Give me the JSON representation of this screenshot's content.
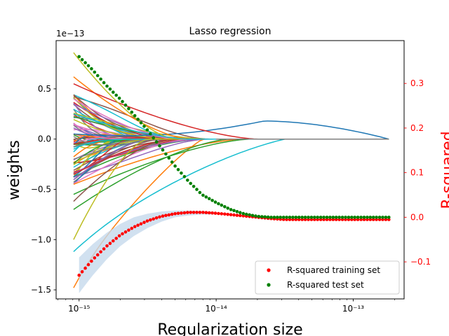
{
  "chart_data": {
    "type": "line",
    "title": "Lasso regression",
    "xlabel": "Regularization size",
    "ylabel_left": "weights",
    "ylabel_right": "R-squared",
    "x_scale": "log",
    "xlim": [
      6.8e-16,
      2.35e-13
    ],
    "ylim_left": [
      -1.59e-13,
      9.8e-14
    ],
    "ylim_right": [
      -0.183,
      0.396
    ],
    "left_axis_multiplier": "1e−13",
    "x_ticks": [
      {
        "value": 1e-15,
        "label": "10⁻¹⁵"
      },
      {
        "value": 1e-14,
        "label": "10⁻¹⁴"
      },
      {
        "value": 1e-13,
        "label": "10⁻¹³"
      }
    ],
    "y_ticks_left": [
      {
        "value": 0.5,
        "label": "0.5"
      },
      {
        "value": 0.0,
        "label": "0.0"
      },
      {
        "value": -0.5,
        "label": "−0.5"
      },
      {
        "value": -1.0,
        "label": "−1.0"
      },
      {
        "value": -1.5,
        "label": "−1.5"
      }
    ],
    "y_ticks_right": [
      {
        "value": 0.3,
        "label": "0.3"
      },
      {
        "value": 0.2,
        "label": "0.2"
      },
      {
        "value": 0.1,
        "label": "0.1"
      },
      {
        "value": 0.0,
        "label": "0.0"
      },
      {
        "value": -0.1,
        "label": "−0.1"
      }
    ],
    "x_range_log10": [
      -15.04,
      -12.74
    ],
    "weight_paths_approx": [
      {
        "color": "#1f77b4",
        "start": 0.05,
        "peak": 0.18,
        "peak_at": -13.65,
        "zero_at": -12.74
      },
      {
        "color": "#ff7f0e",
        "start": 0.62,
        "zero_at": -14.2
      },
      {
        "color": "#ff7f0e",
        "start": -1.48,
        "min": -0.3,
        "zero_at": -14.1
      },
      {
        "color": "#ff7f0e",
        "start": -0.45,
        "zero_at": -13.8
      },
      {
        "color": "#2ca02c",
        "start": -0.7,
        "zero_at": -13.9
      },
      {
        "color": "#2ca02c",
        "start": -0.55,
        "zero_at": -13.75
      },
      {
        "color": "#d62728",
        "start": 0.55,
        "zero_at": -13.7
      },
      {
        "color": "#d62728",
        "start": -0.35,
        "zero_at": -14.3
      },
      {
        "color": "#9467bd",
        "start": 0.35,
        "zero_at": -14.25
      },
      {
        "color": "#8c564b",
        "start": -0.62,
        "zero_at": -14.35
      },
      {
        "color": "#e377c2",
        "start": 0.4,
        "zero_at": -14.3
      },
      {
        "color": "#7f7f7f",
        "start": -0.2,
        "zero_at": -14.4
      },
      {
        "color": "#bcbd22",
        "start": 0.86,
        "zero_at": -14.3
      },
      {
        "color": "#bcbd22",
        "start": -1.0,
        "zero_at": -14.5
      },
      {
        "color": "#17becf",
        "start": -1.12,
        "min": -0.18,
        "zero_at": -13.5
      },
      {
        "color": "#17becf",
        "start": 0.25,
        "zero_at": -14.2
      }
    ],
    "series": [
      {
        "name": "R-squared training set",
        "color": "#ff0000",
        "axis": "right",
        "x_log10": [
          -15.0,
          -14.9,
          -14.8,
          -14.7,
          -14.6,
          -14.5,
          -14.4,
          -14.3,
          -14.2,
          -14.1,
          -14.0,
          -13.9,
          -13.8,
          -13.7,
          -13.6,
          -13.5,
          -13.4,
          -13.3,
          -13.2,
          -13.1,
          -13.0,
          -12.9,
          -12.8,
          -12.74
        ],
        "y": [
          -0.13,
          -0.095,
          -0.065,
          -0.04,
          -0.022,
          -0.008,
          0.002,
          0.008,
          0.011,
          0.011,
          0.009,
          0.006,
          0.003,
          0.0,
          -0.003,
          -0.005,
          -0.005,
          -0.005,
          -0.005,
          -0.005,
          -0.005,
          -0.005,
          -0.005,
          -0.005
        ]
      },
      {
        "name": "R-squared test set",
        "color": "#008000",
        "axis": "right",
        "x_log10": [
          -15.0,
          -14.9,
          -14.8,
          -14.7,
          -14.6,
          -14.5,
          -14.4,
          -14.3,
          -14.2,
          -14.1,
          -14.0,
          -13.9,
          -13.8,
          -13.7,
          -13.6,
          -13.5,
          -13.4,
          -13.3,
          -13.2,
          -13.1,
          -13.0,
          -12.9,
          -12.8,
          -12.74
        ],
        "y": [
          0.36,
          0.33,
          0.295,
          0.265,
          0.23,
          0.195,
          0.155,
          0.115,
          0.08,
          0.05,
          0.033,
          0.018,
          0.008,
          0.002,
          0.0,
          0.0,
          0.0,
          0.0,
          0.0,
          0.0,
          0.0,
          0.0,
          0.0,
          0.0
        ]
      }
    ],
    "training_band": {
      "color": "#c6d9ec",
      "x_log10": [
        -15.0,
        -14.9,
        -14.8,
        -14.7,
        -14.6,
        -14.5,
        -14.4,
        -14.3,
        -14.2,
        -14.1,
        -14.0
      ],
      "lower": [
        -0.17,
        -0.13,
        -0.095,
        -0.065,
        -0.042,
        -0.024,
        -0.01,
        0.0,
        0.004,
        0.006,
        0.006
      ],
      "upper": [
        -0.09,
        -0.06,
        -0.035,
        -0.015,
        0.0,
        0.008,
        0.013,
        0.015,
        0.015,
        0.014,
        0.012
      ]
    },
    "legend": {
      "position": "lower-right",
      "entries": [
        {
          "label": "R-squared training set",
          "color": "#ff0000"
        },
        {
          "label": "R-squared test set",
          "color": "#008000"
        }
      ]
    }
  }
}
